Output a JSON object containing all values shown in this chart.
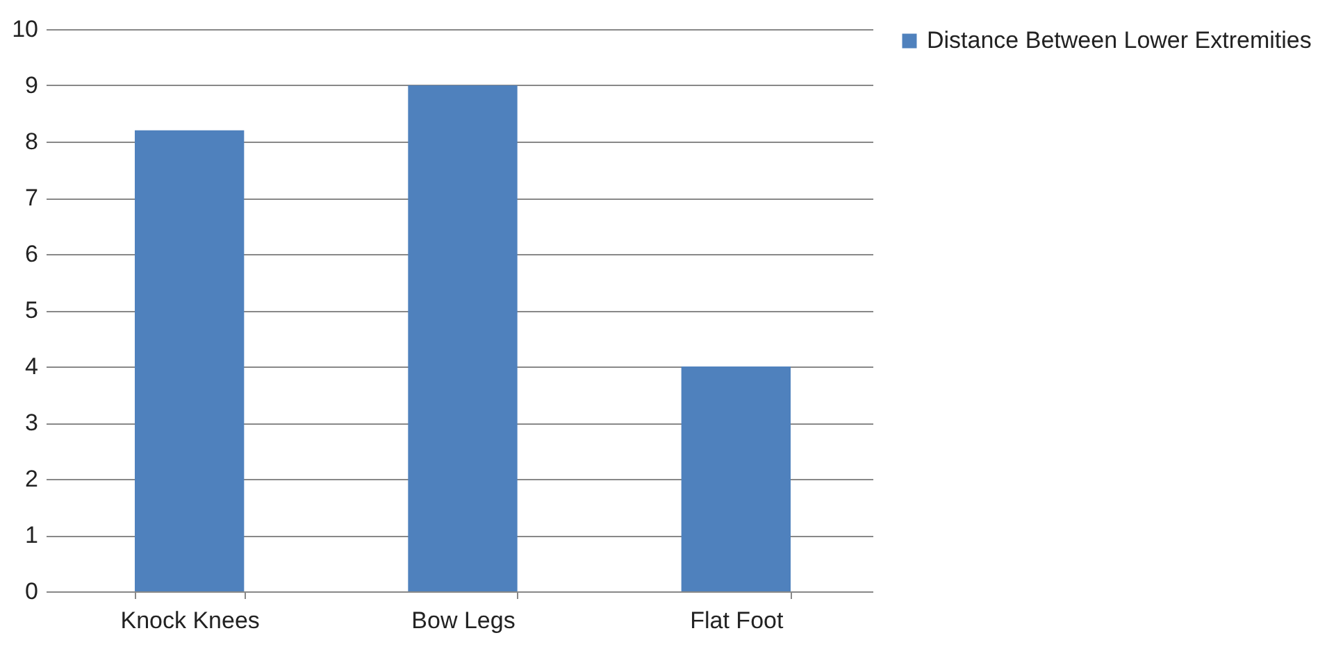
{
  "chart_data": {
    "type": "bar",
    "categories": [
      "Knock Knees",
      "Bow Legs",
      "Flat Foot"
    ],
    "series": [
      {
        "name": "Distance Between Lower Extremities",
        "color": "#4f81bd",
        "values": [
          8.2,
          9,
          4
        ]
      }
    ],
    "ylim": [
      0,
      10
    ],
    "yticks": [
      0,
      1,
      2,
      3,
      4,
      5,
      6,
      7,
      8,
      9,
      10
    ],
    "grid": "y",
    "legend": "right"
  }
}
